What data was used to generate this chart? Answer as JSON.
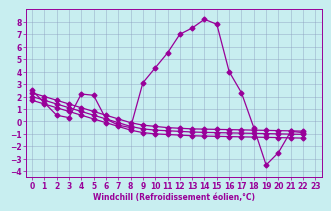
{
  "title": "",
  "xlabel": "Windchill (Refroidissement éolien,°C)",
  "ylabel": "",
  "bg_color": "#c8eef0",
  "line_color": "#990099",
  "marker": "D",
  "markersize": 2.5,
  "linewidth": 0.9,
  "xlim": [
    -0.5,
    23.5
  ],
  "ylim": [
    -4.5,
    9.0
  ],
  "xticks": [
    0,
    1,
    2,
    3,
    4,
    5,
    6,
    7,
    8,
    9,
    10,
    11,
    12,
    13,
    14,
    15,
    16,
    17,
    18,
    19,
    20,
    21,
    22,
    23
  ],
  "yticks": [
    -4,
    -3,
    -2,
    -1,
    0,
    1,
    2,
    3,
    4,
    5,
    6,
    7,
    8
  ],
  "x_main": [
    0,
    1,
    2,
    3,
    4,
    5,
    6,
    7,
    8,
    9,
    10,
    11,
    12,
    13,
    14,
    15,
    16,
    17,
    18,
    19,
    20,
    21,
    22
  ],
  "y_main": [
    2.5,
    1.5,
    0.5,
    0.3,
    2.2,
    2.1,
    0.2,
    -0.3,
    -0.5,
    3.1,
    4.3,
    5.5,
    7.0,
    7.5,
    8.2,
    7.8,
    4.0,
    2.3,
    -0.5,
    -3.5,
    -2.5,
    -0.8,
    -0.9
  ],
  "y_line1": [
    2.3,
    2.0,
    1.7,
    1.4,
    1.1,
    0.8,
    0.5,
    0.2,
    -0.1,
    -0.3,
    -0.4,
    -0.5,
    -0.55,
    -0.6,
    -0.62,
    -0.64,
    -0.66,
    -0.68,
    -0.7,
    -0.72,
    -0.74,
    -0.76,
    -0.78
  ],
  "y_line2": [
    2.0,
    1.7,
    1.4,
    1.1,
    0.8,
    0.5,
    0.2,
    -0.1,
    -0.4,
    -0.6,
    -0.7,
    -0.75,
    -0.8,
    -0.85,
    -0.88,
    -0.9,
    -0.92,
    -0.94,
    -0.96,
    -0.98,
    -1.0,
    -1.02,
    -1.04
  ],
  "y_line3": [
    1.7,
    1.4,
    1.1,
    0.8,
    0.5,
    0.2,
    -0.1,
    -0.4,
    -0.7,
    -0.9,
    -1.0,
    -1.05,
    -1.1,
    -1.15,
    -1.18,
    -1.2,
    -1.22,
    -1.24,
    -1.26,
    -1.28,
    -1.3,
    -1.32,
    -1.34
  ],
  "grid_color": "#8899bb",
  "xlabel_fontsize": 5.5,
  "tick_fontsize": 5.5
}
